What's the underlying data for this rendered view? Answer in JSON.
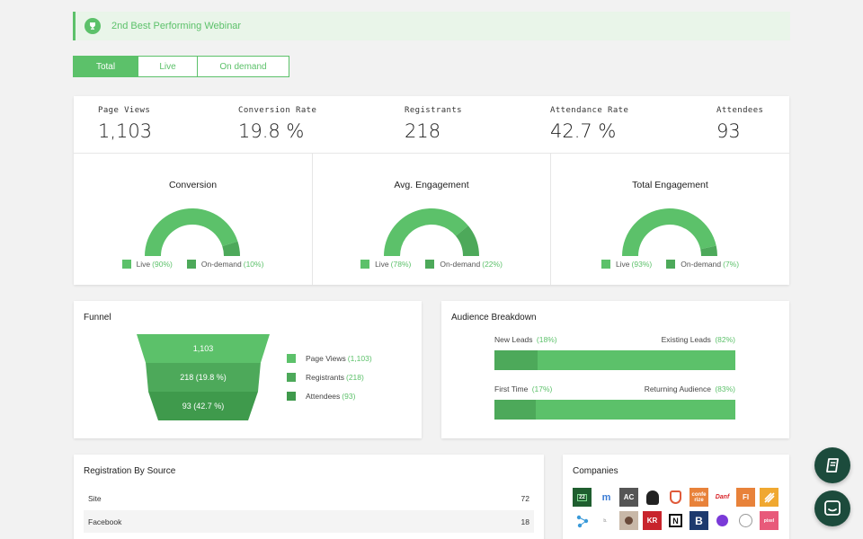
{
  "banner": {
    "text": "2nd Best Performing Webinar",
    "icon": "trophy-icon"
  },
  "tabs": [
    {
      "label": "Total",
      "active": true
    },
    {
      "label": "Live",
      "active": false
    },
    {
      "label": "On demand",
      "active": false
    }
  ],
  "metrics": [
    {
      "label": "Page Views",
      "value": "1,103"
    },
    {
      "label": "Conversion Rate",
      "value": "19.8 %"
    },
    {
      "label": "Registrants",
      "value": "218"
    },
    {
      "label": "Attendance Rate",
      "value": "42.7 %"
    },
    {
      "label": "Attendees",
      "value": "93"
    }
  ],
  "donuts": [
    {
      "title": "Conversion",
      "live_label": "Live",
      "live_pct": "(90%)",
      "live_value": 90,
      "ondemand_label": "On-demand",
      "ondemand_pct": "(10%)"
    },
    {
      "title": "Avg. Engagement",
      "live_label": "Live",
      "live_pct": "(78%)",
      "live_value": 78,
      "ondemand_label": "On-demand",
      "ondemand_pct": "(22%)"
    },
    {
      "title": "Total Engagement",
      "live_label": "Live",
      "live_pct": "(93%)",
      "live_value": 93,
      "ondemand_label": "On-demand",
      "ondemand_pct": "(7%)"
    }
  ],
  "funnel": {
    "title": "Funnel",
    "segments": [
      "1,103",
      "218 (19.8 %)",
      "93 (42.7 %)"
    ],
    "legend": [
      {
        "label": "Page Views",
        "value": "(1,103)"
      },
      {
        "label": "Registrants",
        "value": "(218)"
      },
      {
        "label": "Attendees",
        "value": "(93)"
      }
    ]
  },
  "audience": {
    "title": "Audience Breakdown",
    "bars": [
      {
        "left_label": "New Leads",
        "left_pct": "(18%)",
        "right_label": "Existing Leads",
        "right_pct": "(82%)",
        "fill": 18
      },
      {
        "left_label": "First Time",
        "left_pct": "(17%)",
        "right_label": "Returning Audience",
        "right_pct": "(83%)",
        "fill": 17
      }
    ]
  },
  "registration": {
    "title": "Registration By Source",
    "rows": [
      {
        "source": "Site",
        "count": "72"
      },
      {
        "source": "Facebook",
        "count": "18"
      }
    ]
  },
  "companies": {
    "title": "Companies",
    "logos_row1": [
      "AC",
      "confe rize",
      "FI"
    ],
    "logos_row2": [
      "KR"
    ]
  },
  "colors": {
    "accent": "#5cc16a",
    "accent_dark": "#4da95a",
    "accent_darker": "#3f9a4c",
    "fab": "#1c4b3c"
  }
}
